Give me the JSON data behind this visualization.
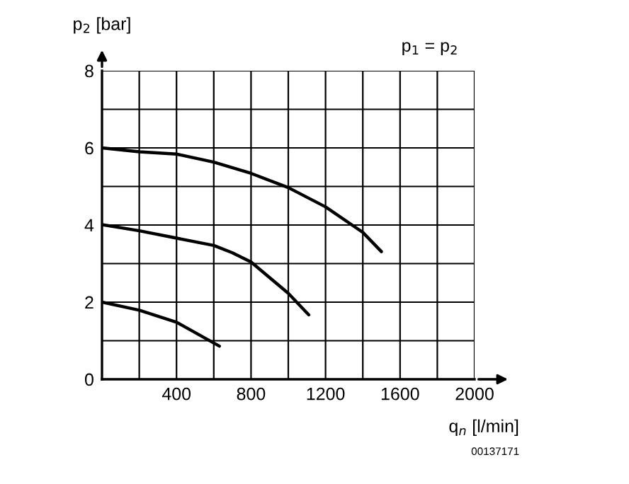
{
  "chart_data": {
    "type": "line",
    "xlabel": "q$_{n}$ [l/min]",
    "ylabel": "p$_{2}$ [bar]",
    "annotations": [
      "p$_{1}$ = p$_{2}$",
      "00137171"
    ],
    "series": [
      {
        "color": "#000000",
        "x": [
          0,
          200,
          400,
          600,
          800,
          1000,
          1200,
          1400,
          1500
        ],
        "values": [
          6.0,
          5.9,
          5.84,
          5.63,
          5.34,
          4.97,
          4.47,
          3.81,
          3.31
        ]
      },
      {
        "color": "#000000",
        "x": [
          0,
          200,
          400,
          600,
          700,
          800,
          1000,
          1110
        ],
        "values": [
          4.01,
          3.85,
          3.66,
          3.47,
          3.28,
          3.04,
          2.23,
          1.67
        ]
      },
      {
        "color": "#000000",
        "x": [
          0,
          200,
          400,
          630
        ],
        "values": [
          2.0,
          1.79,
          1.48,
          0.86
        ]
      }
    ],
    "xlim": [
      0,
      2000
    ],
    "ylim": [
      0,
      8
    ],
    "xticks": [
      400,
      800,
      1200,
      1600,
      2000
    ],
    "yticks": [
      0,
      2,
      4,
      6,
      8
    ],
    "grid": true,
    "marker": "none",
    "line_style": "solid"
  }
}
